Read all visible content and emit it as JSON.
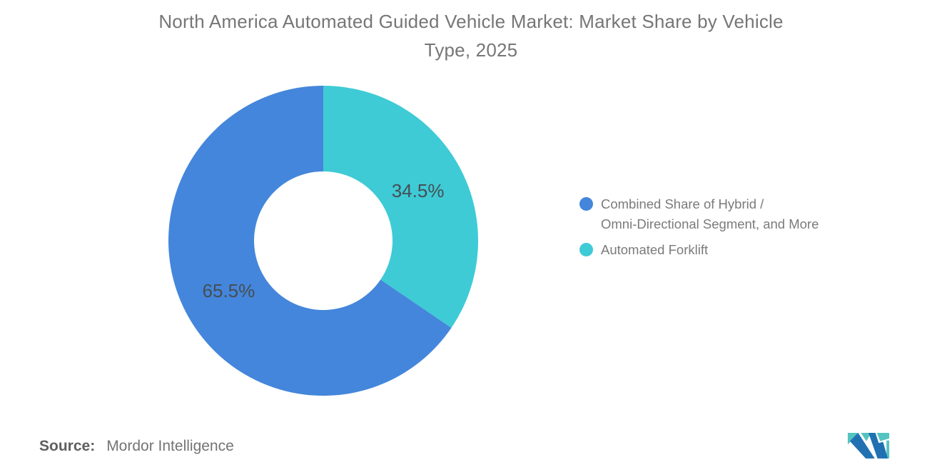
{
  "title": {
    "lines": [
      "North America Automated Guided Vehicle Market: Market Share by Vehicle",
      "Type, 2025"
    ]
  },
  "chart_data": {
    "type": "pie",
    "subtype": "donut",
    "title": "North America Automated Guided Vehicle Market: Market Share by Vehicle Type, 2025",
    "unit": "%",
    "start_angle_deg": 0,
    "direction": "clockwise",
    "slices": [
      {
        "name": "Combined Share of Hybrid / Omni-Directional Segment, and More",
        "value": 65.5,
        "label": "65.5%",
        "color": "#4486DB"
      },
      {
        "name": "Automated Forklift",
        "value": 34.5,
        "label": "34.5%",
        "color": "#3ECBD6"
      }
    ],
    "legend_position": "right",
    "data_labels": "inside"
  },
  "legend": {
    "items": [
      {
        "lines": [
          "Combined Share of Hybrid /",
          "Omni-Directional Segment, and More"
        ],
        "color": "#4486DB"
      },
      {
        "lines": [
          "Automated Forklift"
        ],
        "color": "#3ECBD6"
      }
    ]
  },
  "source": {
    "label": "Source:",
    "value": "Mordor Intelligence"
  },
  "logo": {
    "name": "Mordor Intelligence",
    "colors": {
      "blue": "#2071B2",
      "teal": "#54C4C0"
    }
  },
  "colors": {
    "slice_label_text": "#454E54",
    "title_text": "#767676",
    "legend_text": "#7b7b7b"
  }
}
